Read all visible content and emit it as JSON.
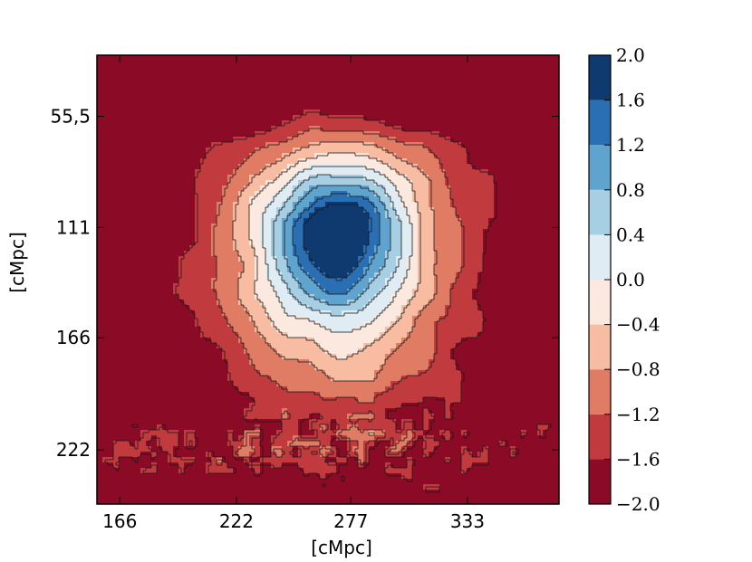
{
  "chart_data": {
    "type": "heatmap",
    "xlabel": "[cMpc]",
    "ylabel": "[cMpc]",
    "xlim": [
      155,
      377
    ],
    "ylim": [
      25,
      249
    ],
    "y_inverted": true,
    "x_ticks": [
      "166",
      "222",
      "277",
      "333"
    ],
    "x_tick_values": [
      166,
      222,
      277,
      333
    ],
    "y_ticks": [
      "55,5",
      "111",
      "166",
      "222"
    ],
    "y_tick_values": [
      55.5,
      111,
      166,
      222
    ],
    "colorbar": {
      "range": [
        -2.0,
        2.0
      ],
      "levels": [
        -2.0,
        -1.6,
        -1.2,
        -0.8,
        -0.4,
        0.0,
        0.4,
        0.8,
        1.2,
        1.6,
        2.0
      ],
      "tick_labels": [
        "2.0",
        "1.6",
        "1.2",
        "0.8",
        "0.4",
        "0.0",
        "−0.4",
        "−0.8",
        "−1.2",
        "−1.6",
        "−2.0"
      ],
      "colors": [
        "#8b0a26",
        "#c13a3d",
        "#e07c64",
        "#f7bca1",
        "#fbe8df",
        "#e0ecf4",
        "#a6cfe4",
        "#5ea4cf",
        "#2a6fb3",
        "#0e3a70"
      ]
    },
    "field": {
      "center": [
        270,
        111
      ],
      "peak_value": 1.8,
      "background_value": -1.8,
      "note_band": "noisy band near y=222"
    },
    "grid": false
  }
}
